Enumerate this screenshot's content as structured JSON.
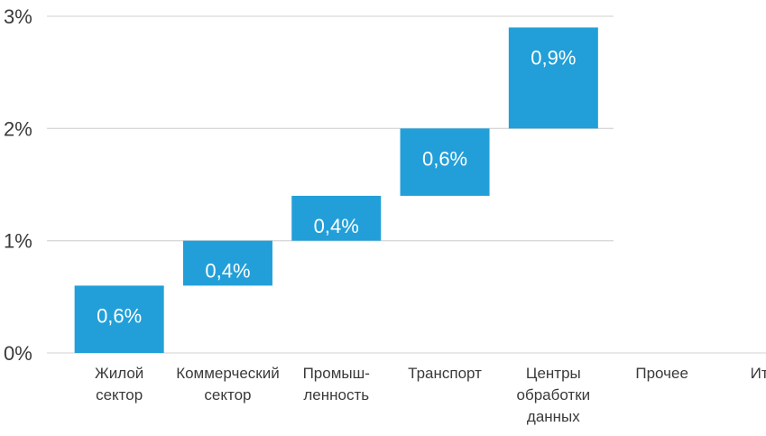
{
  "chart_data": {
    "type": "waterfall",
    "title": "",
    "xlabel": "",
    "ylabel": "",
    "ylim": [
      0,
      3
    ],
    "yticks": [
      {
        "value": 0,
        "label": "0%"
      },
      {
        "value": 1,
        "label": "1%"
      },
      {
        "value": 2,
        "label": "2%"
      },
      {
        "value": 3,
        "label": "3%"
      }
    ],
    "categories": [
      {
        "lines": [
          "Жилой",
          "сектор"
        ]
      },
      {
        "lines": [
          "Коммерческий",
          "сектор"
        ]
      },
      {
        "lines": [
          "Промыш-",
          "ленность"
        ]
      },
      {
        "lines": [
          "Транспорт"
        ]
      },
      {
        "lines": [
          "Центры",
          "обработки",
          "данных"
        ]
      },
      {
        "lines": [
          "Прочее"
        ]
      },
      {
        "lines": [
          "Итого"
        ]
      }
    ],
    "values": [
      0.6,
      0.4,
      0.4,
      0.6,
      0.9,
      null,
      null
    ],
    "data_labels": [
      "0,6%",
      "0,4%",
      "0,4%",
      "0,6%",
      "0,9%",
      "",
      ""
    ],
    "bar_color": "#229fd9",
    "grid": true
  }
}
